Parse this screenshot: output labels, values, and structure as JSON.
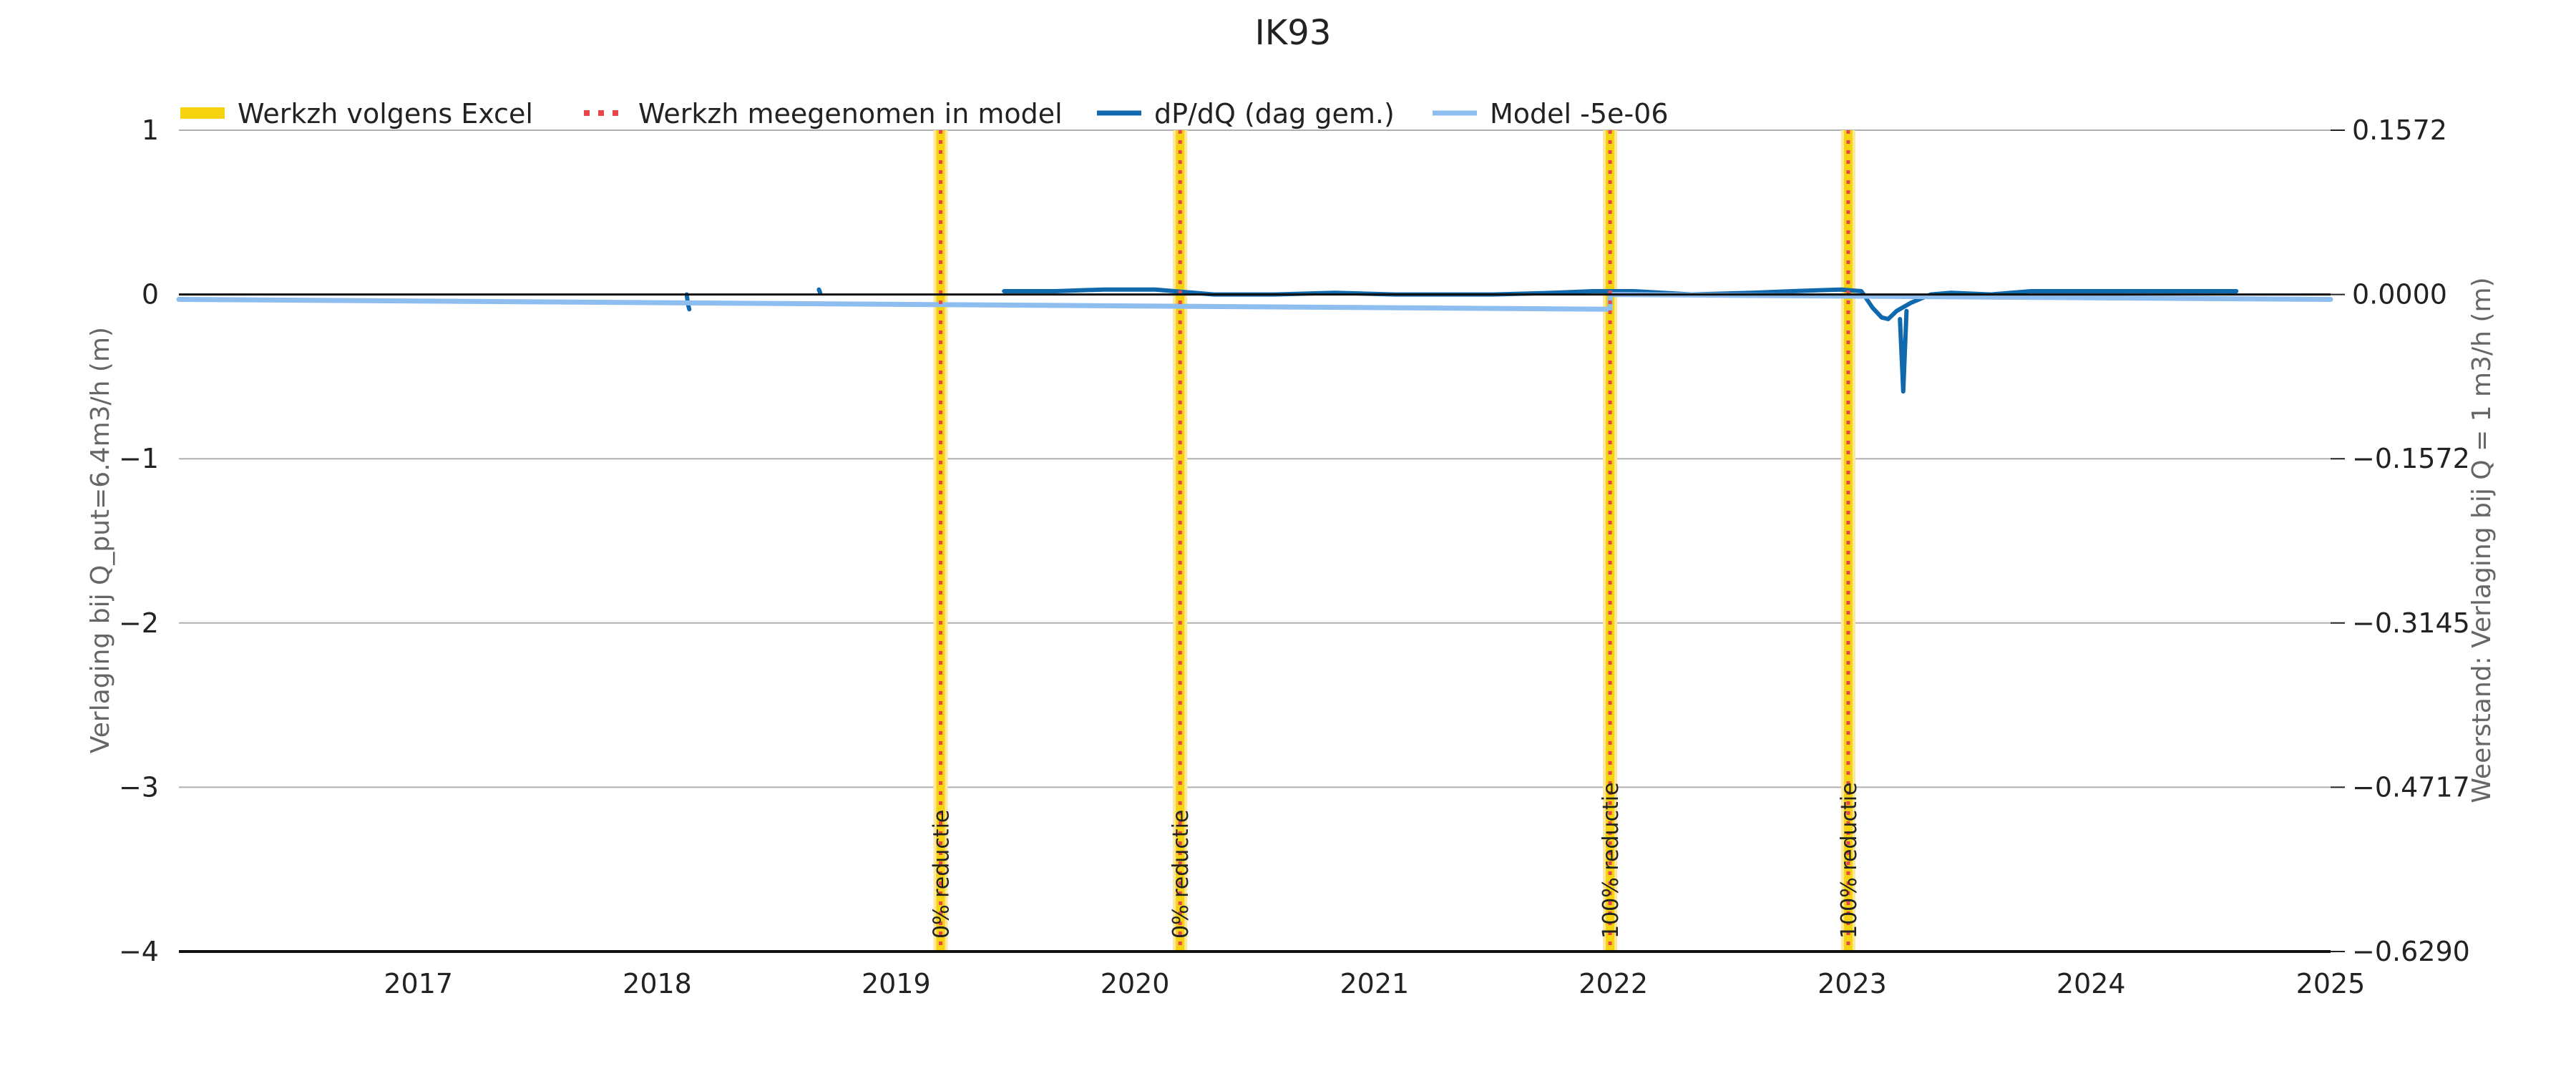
{
  "chart_data": {
    "type": "line",
    "title": "IK93",
    "ylabel": "Verlaging bij Q_put=6.4m3/h (m)",
    "ylabel_right": "Weerstand: Verlaging bij Q = 1 m3/h (m)",
    "xlim": [
      "2016-01-01",
      "2025-01-01"
    ],
    "ylim": [
      -4,
      1
    ],
    "ylim_right": [
      -0.629,
      0.1572
    ],
    "x_ticks": [
      "2017",
      "2018",
      "2019",
      "2020",
      "2021",
      "2022",
      "2023",
      "2024",
      "2025"
    ],
    "y_ticks": [
      "1",
      "0",
      "−1",
      "−2",
      "−3",
      "−4"
    ],
    "y_ticks_right": [
      "0.1572",
      "0.0000",
      "−0.1572",
      "−0.3145",
      "−0.4717",
      "−0.6290"
    ],
    "grid": true,
    "legend_position": "top-left",
    "legend": [
      {
        "label": "Werkzh volgens Excel",
        "color": "#f5d40f",
        "style": "thick"
      },
      {
        "label": "Werkzh meegenomen in model",
        "color": "#e8464d",
        "style": "dotted"
      },
      {
        "label": "dP/dQ (dag gem.)",
        "color": "#1068ad",
        "style": "solid"
      },
      {
        "label": "Model -5e-06",
        "color": "#8ebdf0",
        "style": "solid"
      }
    ],
    "events": [
      {
        "date": "2019-03-10",
        "label": "0% reductie"
      },
      {
        "date": "2020-03-10",
        "label": "0% reductie"
      },
      {
        "date": "2021-12-27",
        "label": "100% reductie"
      },
      {
        "date": "2022-12-26",
        "label": "100% reductie"
      }
    ],
    "series": [
      {
        "name": "dP/dQ (dag gem.)",
        "color": "#1068ad",
        "segments": [
          {
            "x": [
              "2018-02-15",
              "2018-02-17",
              "2018-02-19"
            ],
            "y": [
              0.0,
              -0.06,
              -0.09
            ]
          },
          {
            "x": [
              "2018-09-05",
              "2018-09-07"
            ],
            "y": [
              0.03,
              0.01
            ]
          },
          {
            "x": [
              "2019-06-15",
              "2019-09-01",
              "2019-11-15",
              "2020-02-01",
              "2020-05-01",
              "2020-08-01",
              "2020-11-01",
              "2021-02-01",
              "2021-04-01",
              "2021-07-01",
              "2021-10-01",
              "2021-12-01",
              "2022-02-01",
              "2022-05-01",
              "2022-08-01",
              "2022-10-01",
              "2022-12-15",
              "2023-01-15",
              "2023-02-01",
              "2023-02-15",
              "2023-02-25",
              "2023-03-10",
              "2023-04-01",
              "2023-05-01",
              "2023-06-01",
              "2023-08-01",
              "2023-10-01",
              "2024-01-01",
              "2024-04-01",
              "2024-08-10"
            ],
            "y": [
              0.02,
              0.02,
              0.03,
              0.03,
              0.0,
              0.0,
              0.01,
              0.0,
              0.0,
              0.0,
              0.01,
              0.02,
              0.02,
              0.0,
              0.01,
              0.02,
              0.03,
              0.02,
              -0.08,
              -0.14,
              -0.15,
              -0.1,
              -0.05,
              0.0,
              0.01,
              0.0,
              0.02,
              0.02,
              0.02,
              0.02
            ]
          },
          {
            "x": [
              "2023-03-15",
              "2023-03-20",
              "2023-03-25"
            ],
            "y": [
              -0.15,
              -0.59,
              -0.1
            ]
          }
        ]
      },
      {
        "name": "Model -5e-06",
        "color": "#8ebdf0",
        "segments": [
          {
            "x": [
              "2016-01-01",
              "2021-12-27",
              "2021-12-27",
              "2025-01-01"
            ],
            "y": [
              -0.03,
              -0.09,
              0.0,
              -0.03
            ]
          }
        ]
      }
    ]
  }
}
